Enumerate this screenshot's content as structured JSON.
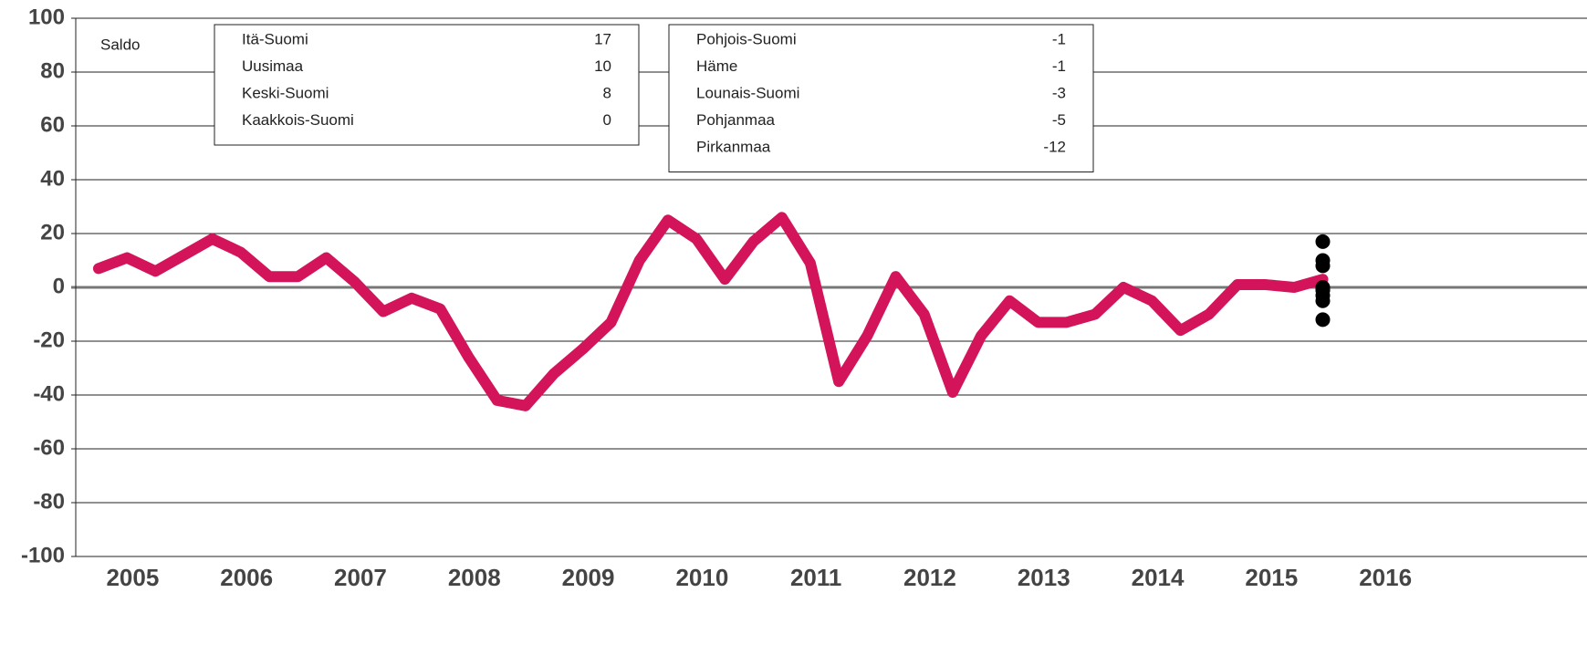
{
  "chart_data": {
    "type": "line",
    "y_label": "Saldo",
    "x": [
      2005.2,
      2005.45,
      2005.7,
      2005.95,
      2006.2,
      2006.45,
      2006.7,
      2006.95,
      2007.2,
      2007.45,
      2007.7,
      2007.95,
      2008.2,
      2008.45,
      2008.7,
      2008.95,
      2009.2,
      2009.45,
      2009.7,
      2009.95,
      2010.2,
      2010.45,
      2010.7,
      2010.95,
      2011.2,
      2011.45,
      2011.7,
      2011.95,
      2012.2,
      2012.45,
      2012.7,
      2012.95,
      2013.2,
      2013.45,
      2013.7,
      2013.95,
      2014.2,
      2014.45,
      2014.7,
      2014.95,
      2015.2,
      2015.45,
      2015.7,
      2015.95
    ],
    "series": [
      {
        "color": "#d4145a",
        "values": [
          7,
          11,
          6,
          12,
          18,
          13,
          4,
          4,
          11,
          2,
          -9,
          -4,
          -8,
          -26,
          -42,
          -44,
          -32,
          -23,
          -13,
          10,
          25,
          18,
          3,
          17,
          26,
          9,
          -35,
          -18,
          4,
          -10,
          -39,
          -18,
          -5,
          -13,
          -13,
          -10,
          0,
          -5,
          -16,
          -10,
          1,
          1,
          0,
          3
        ]
      }
    ],
    "regions_x": 2015.95,
    "regions_color": "#000000",
    "regions": [
      {
        "name": "Itä-Suomi",
        "value": 17
      },
      {
        "name": "Uusimaa",
        "value": 10
      },
      {
        "name": "Keski-Suomi",
        "value": 8
      },
      {
        "name": "Kaakkois-Suomi",
        "value": 0
      },
      {
        "name": "Pohjois-Suomi",
        "value": -1
      },
      {
        "name": "Häme",
        "value": -1
      },
      {
        "name": "Lounais-Suomi",
        "value": -3
      },
      {
        "name": "Pohjanmaa",
        "value": -5
      },
      {
        "name": "Pirkanmaa",
        "value": -12
      }
    ],
    "xlim": [
      2005,
      2018.27
    ],
    "xticks": [
      {
        "value": 2005.5,
        "label": "2005"
      },
      {
        "value": 2006.5,
        "label": "2006"
      },
      {
        "value": 2007.5,
        "label": "2007"
      },
      {
        "value": 2008.5,
        "label": "2008"
      },
      {
        "value": 2009.5,
        "label": "2009"
      },
      {
        "value": 2010.5,
        "label": "2010"
      },
      {
        "value": 2011.5,
        "label": "2011"
      },
      {
        "value": 2012.5,
        "label": "2012"
      },
      {
        "value": 2013.5,
        "label": "2013"
      },
      {
        "value": 2014.5,
        "label": "2014"
      },
      {
        "value": 2015.5,
        "label": "2015"
      },
      {
        "value": 2016.5,
        "label": "2016"
      }
    ],
    "ylim": [
      -100,
      100
    ],
    "yticks": [
      -100,
      -80,
      -60,
      -40,
      -20,
      0,
      20,
      40,
      60,
      80,
      100
    ],
    "grid": true
  }
}
